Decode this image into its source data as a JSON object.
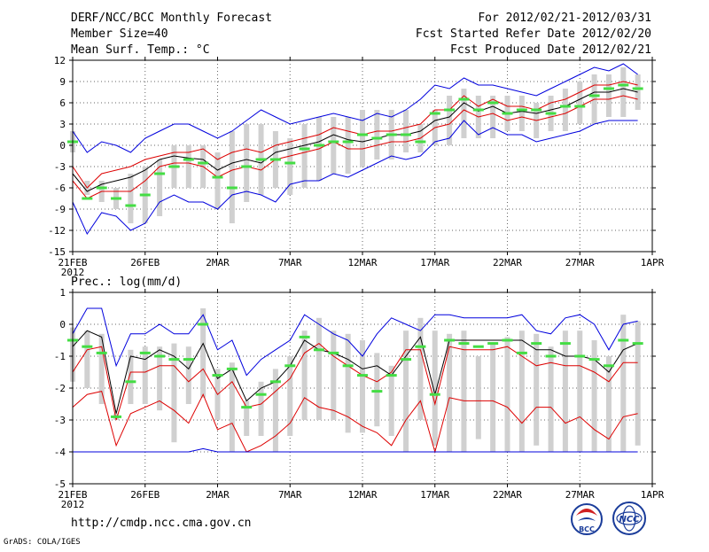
{
  "header": {
    "title": "DERF/NCC/BCC Monthly Forecast",
    "member_size": "Member Size=40",
    "variable": "Mean Surf. Temp.: °C",
    "period": "For 2012/02/21-2012/03/31",
    "fcst_started": "Fcst Started Refer Date 2012/02/20",
    "fcst_produced": "Fcst Produced Date 2012/02/21"
  },
  "footer": {
    "url": "http://cmdp.ncc.cma.gov.cn",
    "grads_credit": "GrADS: COLA/IGES",
    "logo_bcc_text": "BCC",
    "logo_ncc_text": "NCC"
  },
  "colors": {
    "envelope": "#0000dd",
    "inner_band": "#dd0000",
    "mean": "#000000",
    "member_box": "#d0d0d0",
    "observation": "#44dd44",
    "grid": "#666666"
  },
  "chart_data": [
    {
      "type": "line",
      "title": "Mean Surf. Temp.: °C",
      "xlabel": "",
      "ylabel": "°C",
      "ylim": [
        -15,
        12
      ],
      "x_range": [
        0,
        40
      ],
      "yticks": [
        12,
        9,
        6,
        3,
        0,
        -3,
        -6,
        -9,
        -12,
        -15
      ],
      "ytick_labels": [
        "12",
        "9",
        "6",
        "3",
        "0",
        "-3",
        "-6",
        "-9",
        "-12",
        "-15"
      ],
      "xticks": [
        0,
        5,
        10,
        15,
        20,
        25,
        30,
        35,
        40
      ],
      "xtick_labels": [
        "21FEB",
        "26FEB",
        "2MAR",
        "7MAR",
        "12MAR",
        "17MAR",
        "22MAR",
        "27MAR",
        "1APR"
      ],
      "year_label": "2012",
      "grid": true,
      "days": [
        0,
        1,
        2,
        3,
        4,
        5,
        6,
        7,
        8,
        9,
        10,
        11,
        12,
        13,
        14,
        15,
        16,
        17,
        18,
        19,
        20,
        21,
        22,
        23,
        24,
        25,
        26,
        27,
        28,
        29,
        30,
        31,
        32,
        33,
        34,
        35,
        36,
        37,
        38,
        39
      ],
      "box_low": [
        -1,
        -7,
        -8,
        -9,
        -11,
        -11,
        -10,
        -6,
        -6,
        -6,
        -9,
        -11,
        -8,
        -7,
        -6,
        -7,
        -6,
        -5,
        -4,
        -4,
        -3,
        -2,
        -2,
        -1,
        -1,
        0,
        0,
        1,
        1,
        1,
        2,
        2,
        1,
        2,
        2,
        3,
        3,
        4,
        4,
        5
      ],
      "box_high": [
        2,
        -5,
        -5,
        -6,
        -4,
        -3,
        -2,
        0,
        0,
        0,
        -1,
        2,
        3,
        3,
        2,
        1,
        3,
        4,
        4,
        4,
        5,
        5,
        5,
        5,
        3,
        5,
        7,
        8,
        7,
        7,
        7,
        7,
        6,
        7,
        8,
        9,
        10,
        10,
        11,
        10
      ],
      "series": [
        {
          "name": "max envelope",
          "color": "#0000dd",
          "values": [
            2,
            -1,
            0.5,
            0,
            -1,
            1,
            2,
            3,
            3,
            2,
            1,
            2,
            3.5,
            5,
            4,
            3,
            3.5,
            4,
            4.5,
            4,
            3.5,
            4.5,
            4,
            5,
            6.5,
            8.5,
            8,
            9.5,
            8.5,
            8.5,
            8,
            7.5,
            7,
            8,
            9,
            10,
            11,
            10.5,
            11.5,
            10
          ]
        },
        {
          "name": "upper band",
          "color": "#dd0000",
          "values": [
            -3,
            -6,
            -4,
            -3.5,
            -3,
            -2,
            -1.5,
            -1,
            -1,
            -0.5,
            -2,
            -1,
            -0.5,
            -1,
            0,
            0.5,
            1,
            1.5,
            2.5,
            2,
            1.5,
            2,
            2,
            2.5,
            3,
            5,
            5,
            7,
            5.5,
            6.5,
            5.5,
            5.5,
            5,
            6,
            6.5,
            7.5,
            8.5,
            8.5,
            9,
            8.5
          ]
        },
        {
          "name": "ensemble mean",
          "color": "#000000",
          "values": [
            -4,
            -6.5,
            -5.5,
            -5,
            -4.5,
            -3.5,
            -2,
            -1.5,
            -1.8,
            -2,
            -3.5,
            -2.5,
            -2,
            -2.5,
            -1,
            -0.5,
            0,
            0.5,
            1.5,
            0.8,
            0.5,
            1,
            1.5,
            1.5,
            2,
            3.5,
            4,
            6,
            4.8,
            5.5,
            4.5,
            4.8,
            4.5,
            5,
            5.5,
            6.5,
            7.5,
            7.5,
            8,
            7.5
          ]
        },
        {
          "name": "lower band",
          "color": "#dd0000",
          "values": [
            -5,
            -7.5,
            -6.5,
            -6.5,
            -6.5,
            -5,
            -3,
            -2.5,
            -2.5,
            -3,
            -4.5,
            -3.5,
            -3,
            -3.5,
            -2,
            -1.5,
            -1,
            -0.5,
            0.5,
            -0.5,
            -0.5,
            0,
            0.5,
            0.5,
            1,
            2.5,
            3,
            5,
            4,
            4.5,
            3.5,
            4,
            3.5,
            4,
            4.5,
            5.5,
            6.5,
            6.5,
            7,
            6.5
          ]
        },
        {
          "name": "min envelope",
          "color": "#0000dd",
          "values": [
            -8,
            -12.5,
            -9.5,
            -10,
            -12,
            -11,
            -8,
            -7,
            -8,
            -8,
            -9,
            -7,
            -6.5,
            -7,
            -8,
            -5.5,
            -5,
            -5,
            -4,
            -4.5,
            -3.5,
            -2.5,
            -1.5,
            -2,
            -1.5,
            0.5,
            1,
            3.5,
            1.5,
            2.5,
            1.5,
            1.5,
            0.5,
            1,
            1.5,
            2,
            3,
            3.5,
            3.5,
            3.5
          ]
        }
      ],
      "observation": [
        0.5,
        -7.5,
        -6,
        -7.5,
        -8.5,
        -7,
        -4,
        -3,
        -2,
        -2.5,
        -4.5,
        -6,
        -3,
        -2,
        -2,
        -2.5,
        -0.5,
        0,
        0.5,
        0.5,
        1.5,
        1,
        1.5,
        1.5,
        0.5,
        4.5,
        5,
        6.5,
        5,
        6,
        4.5,
        5,
        5,
        4.5,
        5.5,
        5.5,
        7,
        8,
        8.5,
        8
      ]
    },
    {
      "type": "line",
      "title": "Prec.: log(mm/d)",
      "xlabel": "",
      "ylabel": "log(mm/d)",
      "ylim": [
        -5,
        1
      ],
      "x_range": [
        0,
        40
      ],
      "yticks": [
        1,
        0,
        -1,
        -2,
        -3,
        -4,
        -5
      ],
      "ytick_labels": [
        "1",
        "0",
        "-1",
        "-2",
        "-3",
        "-4",
        "-5"
      ],
      "xticks": [
        0,
        5,
        10,
        15,
        20,
        25,
        30,
        35,
        40
      ],
      "xtick_labels": [
        "21FEB",
        "26FEB",
        "2MAR",
        "7MAR",
        "12MAR",
        "17MAR",
        "22MAR",
        "27MAR",
        "1APR"
      ],
      "year_label": "2012",
      "grid": true,
      "days": [
        0,
        1,
        2,
        3,
        4,
        5,
        6,
        7,
        8,
        9,
        10,
        11,
        12,
        13,
        14,
        15,
        16,
        17,
        18,
        19,
        20,
        21,
        22,
        23,
        24,
        25,
        26,
        27,
        28,
        29,
        30,
        31,
        32,
        33,
        34,
        35,
        36,
        37,
        38,
        39
      ],
      "box_low": [
        -1.8,
        -2,
        -2.5,
        -3,
        -2.5,
        -2.5,
        -2.7,
        -3.7,
        -2.5,
        -2.3,
        -3,
        -4,
        -3.5,
        -3.5,
        -4,
        -3.5,
        -3,
        -3,
        -3,
        -3.4,
        -3.4,
        -3.2,
        -3.5,
        -4,
        -3,
        -3.8,
        -4,
        -4,
        -3.6,
        -4,
        -4,
        -4,
        -3.8,
        -4,
        -4,
        -4,
        -4,
        -4,
        -4,
        -3.8
      ],
      "box_high": [
        -0.1,
        -0.2,
        -0.3,
        -2.8,
        -0.8,
        -0.7,
        -0.7,
        -0.6,
        -0.7,
        0.5,
        -1.4,
        -1.2,
        -2.4,
        -1.8,
        -1.4,
        -1,
        -0.2,
        0.2,
        -0.2,
        -0.3,
        -0.5,
        -0.9,
        -1.3,
        -0.2,
        0.2,
        -0.2,
        -0.3,
        -0.2,
        -1,
        -0.6,
        -0.4,
        -0.2,
        -0.3,
        -0.7,
        -0.2,
        -0.2,
        -0.5,
        -1,
        0.3,
        0.1
      ],
      "series": [
        {
          "name": "max envelope",
          "color": "#0000dd",
          "values": [
            -0.3,
            0.5,
            0.5,
            -1.3,
            -0.3,
            -0.3,
            0,
            -0.3,
            -0.3,
            0.3,
            -0.8,
            -0.5,
            -1.6,
            -1.1,
            -0.8,
            -0.5,
            0.3,
            0,
            -0.3,
            -0.5,
            -1,
            -0.3,
            0.2,
            0,
            -0.2,
            0.3,
            0.3,
            0.2,
            0.2,
            0.2,
            0.2,
            0.3,
            -0.2,
            -0.3,
            0.2,
            0.3,
            0,
            -0.8,
            0,
            0.1
          ]
        },
        {
          "name": "upper band",
          "color": "#dd0000",
          "values": [
            -1.5,
            -0.8,
            -0.7,
            -3,
            -1.5,
            -1.5,
            -1.3,
            -1.3,
            -1.8,
            -1.4,
            -2.2,
            -1.8,
            -2.6,
            -2.5,
            -2.1,
            -1.7,
            -0.9,
            -0.6,
            -1,
            -1.3,
            -1.6,
            -1.8,
            -1.5,
            -0.8,
            -0.8,
            -2.5,
            -0.7,
            -0.8,
            -0.8,
            -0.8,
            -0.7,
            -1,
            -1.3,
            -1.2,
            -1.3,
            -1.3,
            -1.5,
            -1.8,
            -1.2,
            -1.2
          ]
        },
        {
          "name": "ensemble mean",
          "color": "#000000",
          "values": [
            -0.7,
            -0.2,
            -0.4,
            -2.8,
            -1,
            -1.1,
            -0.8,
            -1,
            -1.4,
            -0.6,
            -1.7,
            -1.4,
            -2.4,
            -2,
            -1.8,
            -1.3,
            -0.5,
            -0.8,
            -0.9,
            -1.1,
            -1.4,
            -1.3,
            -1.6,
            -1,
            -0.4,
            -2.2,
            -0.5,
            -0.5,
            -0.5,
            -0.5,
            -0.5,
            -0.5,
            -0.8,
            -0.8,
            -1,
            -1,
            -1.1,
            -1.5,
            -0.8,
            -0.6
          ]
        },
        {
          "name": "lower band",
          "color": "#dd0000",
          "values": [
            -2.6,
            -2.2,
            -2.1,
            -3.8,
            -2.8,
            -2.6,
            -2.4,
            -2.7,
            -3.1,
            -2.2,
            -3.3,
            -3.1,
            -4,
            -3.8,
            -3.5,
            -3.1,
            -2.3,
            -2.6,
            -2.7,
            -2.9,
            -3.2,
            -3.4,
            -3.8,
            -3,
            -2.4,
            -4,
            -2.3,
            -2.4,
            -2.4,
            -2.4,
            -2.6,
            -3.1,
            -2.6,
            -2.6,
            -3.1,
            -2.9,
            -3.3,
            -3.6,
            -2.9,
            -2.8
          ]
        },
        {
          "name": "min envelope",
          "color": "#0000dd",
          "values": [
            -4,
            -4,
            -4,
            -4,
            -4,
            -4,
            -4,
            -4,
            -4,
            -3.9,
            -4,
            -4,
            -4,
            -4,
            -4,
            -4,
            -4,
            -4,
            -4,
            -4,
            -4,
            -4,
            -4,
            -4,
            -4,
            -4,
            -4,
            -4,
            -4,
            -4,
            -4,
            -4,
            -4,
            -4,
            -4,
            -4,
            -4,
            -4,
            -4,
            -4
          ]
        }
      ],
      "observation": [
        -0.5,
        -0.7,
        -0.9,
        -2.9,
        -1.8,
        -0.9,
        -1,
        -1.1,
        -1.1,
        0,
        -1.6,
        -1.4,
        -2.6,
        -2.2,
        -1.8,
        -1.3,
        -0.4,
        -0.8,
        -0.9,
        -1.3,
        -1.6,
        -2.1,
        -1.6,
        -1.1,
        -0.7,
        -2.2,
        -0.5,
        -0.6,
        -0.7,
        -0.6,
        -0.5,
        -0.9,
        -0.6,
        -1,
        -0.6,
        -1,
        -1.1,
        -1.3,
        -0.5,
        -0.6
      ]
    }
  ]
}
